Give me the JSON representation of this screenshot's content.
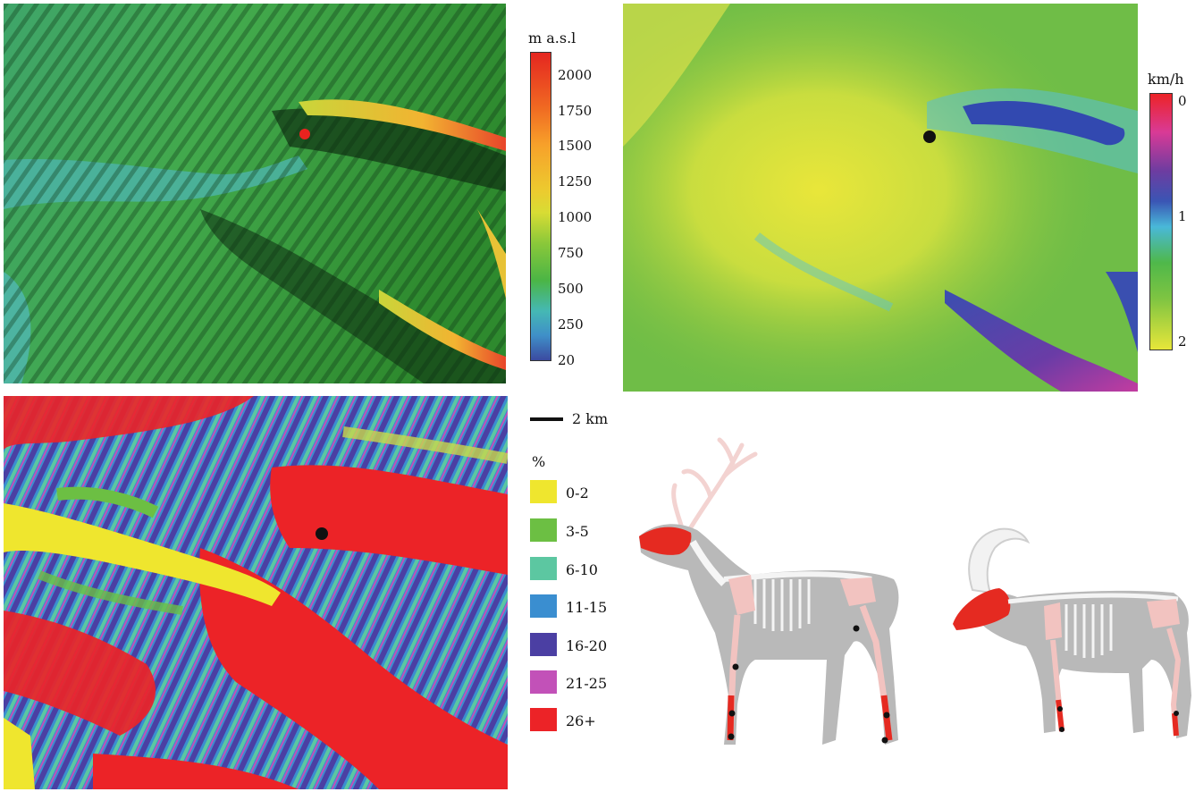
{
  "elevation_map": {
    "unit_label": "m a.s.l",
    "ticks": [
      "2000",
      "1750",
      "1500",
      "1250",
      "1000",
      "750",
      "500",
      "250",
      "20"
    ],
    "colorbar_colors": [
      "#e52620",
      "#f06a22",
      "#f7a12a",
      "#eccb2f",
      "#d8dc34",
      "#8ac83a",
      "#4bb545",
      "#45b8b4",
      "#3f8fc8",
      "#3b4aa0"
    ]
  },
  "speed_map": {
    "unit_label": "km/h",
    "ticks": [
      "0",
      "1",
      "2"
    ],
    "colorbar_colors": [
      "#ec2327",
      "#d93a96",
      "#6e3ca0",
      "#3a55b4",
      "#49b8d8",
      "#4fb84a",
      "#7ec442",
      "#e7e63a"
    ]
  },
  "slope_map": {
    "scale_bar_label": "2 km",
    "unit_label": "%",
    "classes": [
      {
        "label": "0-2",
        "color": "#efe62e"
      },
      {
        "label": "3-5",
        "color": "#6cbf43"
      },
      {
        "label": "6-10",
        "color": "#5cc7a1"
      },
      {
        "label": "11-15",
        "color": "#3a8ed0"
      },
      {
        "label": "16-20",
        "color": "#4b3fa3"
      },
      {
        "label": "21-25",
        "color": "#c251b8"
      },
      {
        "label": "26+",
        "color": "#ec2327"
      }
    ]
  },
  "colors": {
    "site_marker_elevation": "#e8231f",
    "site_marker_other": "#111111",
    "bone_highlight": "#e52a21",
    "bone_light": "#f2c3c0",
    "body_fill": "#b9b9b9"
  }
}
